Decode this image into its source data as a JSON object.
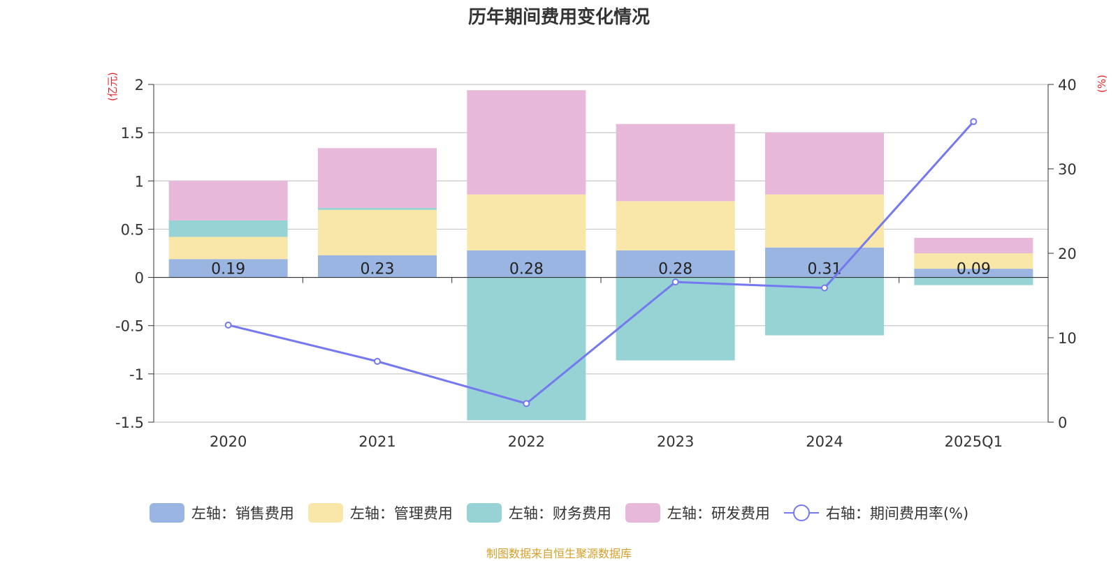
{
  "chart_data": {
    "type": "bar",
    "title": "历年期间费用变化情况",
    "left_unit": "(亿元)",
    "right_unit": "(%)",
    "categories": [
      "2020",
      "2021",
      "2022",
      "2023",
      "2024",
      "2025Q1"
    ],
    "series": [
      {
        "name": "左轴：销售费用",
        "axis": "left",
        "type": "bar",
        "color": "#9ab5e1",
        "values": [
          0.19,
          0.23,
          0.28,
          0.28,
          0.31,
          0.09
        ],
        "labels": [
          "0.19",
          "0.23",
          "0.28",
          "0.28",
          "0.31",
          "0.09"
        ]
      },
      {
        "name": "左轴：管理费用",
        "axis": "left",
        "type": "bar",
        "color": "#f8e7a8",
        "values": [
          0.23,
          0.47,
          0.58,
          0.51,
          0.55,
          0.16
        ]
      },
      {
        "name": "左轴：财务费用",
        "axis": "left",
        "type": "bar",
        "color": "#97d3d4",
        "values": [
          0.17,
          0.02,
          -1.48,
          -0.86,
          -0.6,
          -0.08
        ]
      },
      {
        "name": "左轴：研发费用",
        "axis": "left",
        "type": "bar",
        "color": "#e8b8da",
        "values": [
          0.41,
          0.62,
          1.08,
          0.8,
          0.64,
          0.16
        ]
      },
      {
        "name": "右轴：期间费用率(%)",
        "axis": "right",
        "type": "line",
        "color": "#7479f0",
        "values": [
          11.5,
          7.2,
          2.2,
          16.6,
          15.9,
          35.6
        ]
      }
    ],
    "ylim_left": [
      -1.5,
      2
    ],
    "yticks_left": [
      2,
      1.5,
      1,
      0.5,
      0,
      -0.5,
      -1,
      -1.5
    ],
    "yticks_left_labels": [
      "2",
      "1.5",
      "1",
      "0.5",
      "0",
      "-0.5",
      "-1",
      "-1.5"
    ],
    "ylim_right": [
      0,
      40
    ],
    "yticks_right": [
      40,
      30,
      20,
      10,
      0
    ],
    "yticks_right_labels": [
      "40",
      "30",
      "20",
      "10",
      "0"
    ],
    "legend_position": "bottom"
  },
  "source": "制图数据来自恒生聚源数据库"
}
